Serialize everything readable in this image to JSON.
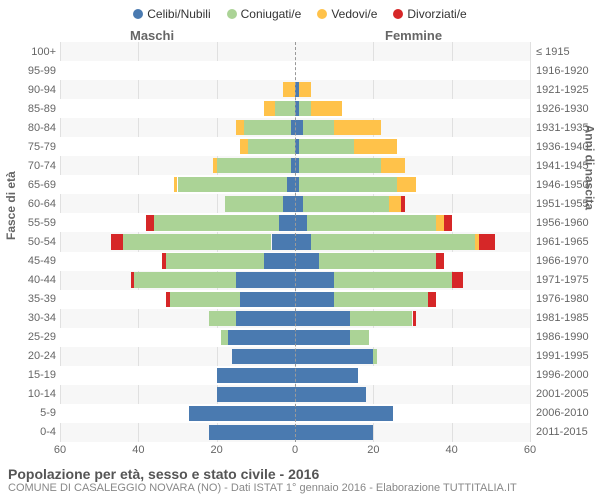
{
  "legend": {
    "items": [
      {
        "label": "Celibi/Nubili",
        "color": "#4a7ab0"
      },
      {
        "label": "Coniugati/e",
        "color": "#abd396"
      },
      {
        "label": "Vedovi/e",
        "color": "#ffc24a"
      },
      {
        "label": "Divorziati/e",
        "color": "#d62728"
      }
    ]
  },
  "gender_labels": {
    "male": "Maschi",
    "female": "Femmine"
  },
  "y_left_title": "Fasce di età",
  "y_right_title": "Anni di nascita",
  "title": "Popolazione per età, sesso e stato civile - 2016",
  "subtitle": "COMUNE DI CASALEGGIO NOVARA (NO) - Dati ISTAT 1° gennaio 2016 - Elaborazione TUTTITALIA.IT",
  "x_axis": {
    "min": -60,
    "max": 60,
    "ticks": [
      -60,
      -40,
      -20,
      0,
      20,
      40,
      60
    ],
    "tick_labels": [
      "60",
      "40",
      "20",
      "0",
      "20",
      "40",
      "60"
    ]
  },
  "plot": {
    "bg": "#f7f7f7",
    "alt_bg": "#ffffff",
    "grid_color": "#e0e0e0",
    "centerline_color": "#999999"
  },
  "rows": [
    {
      "age": "100+",
      "birth": "≤ 1915",
      "m": {
        "single": 0,
        "married": 0,
        "widow": 0,
        "div": 0
      },
      "f": {
        "single": 0,
        "married": 0,
        "widow": 0,
        "div": 0
      }
    },
    {
      "age": "95-99",
      "birth": "1916-1920",
      "m": {
        "single": 0,
        "married": 0,
        "widow": 0,
        "div": 0
      },
      "f": {
        "single": 0,
        "married": 0,
        "widow": 0,
        "div": 0
      }
    },
    {
      "age": "90-94",
      "birth": "1921-1925",
      "m": {
        "single": 0,
        "married": 0,
        "widow": 3,
        "div": 0
      },
      "f": {
        "single": 1,
        "married": 0,
        "widow": 3,
        "div": 0
      }
    },
    {
      "age": "85-89",
      "birth": "1926-1930",
      "m": {
        "single": 0,
        "married": 5,
        "widow": 3,
        "div": 0
      },
      "f": {
        "single": 1,
        "married": 3,
        "widow": 8,
        "div": 0
      }
    },
    {
      "age": "80-84",
      "birth": "1931-1935",
      "m": {
        "single": 1,
        "married": 12,
        "widow": 2,
        "div": 0
      },
      "f": {
        "single": 2,
        "married": 8,
        "widow": 12,
        "div": 0
      }
    },
    {
      "age": "75-79",
      "birth": "1936-1940",
      "m": {
        "single": 0,
        "married": 12,
        "widow": 2,
        "div": 0
      },
      "f": {
        "single": 1,
        "married": 14,
        "widow": 11,
        "div": 0
      }
    },
    {
      "age": "70-74",
      "birth": "1941-1945",
      "m": {
        "single": 1,
        "married": 19,
        "widow": 1,
        "div": 0
      },
      "f": {
        "single": 1,
        "married": 21,
        "widow": 6,
        "div": 0
      }
    },
    {
      "age": "65-69",
      "birth": "1946-1950",
      "m": {
        "single": 2,
        "married": 28,
        "widow": 1,
        "div": 0
      },
      "f": {
        "single": 1,
        "married": 25,
        "widow": 5,
        "div": 0
      }
    },
    {
      "age": "60-64",
      "birth": "1951-1955",
      "m": {
        "single": 3,
        "married": 15,
        "widow": 0,
        "div": 0
      },
      "f": {
        "single": 2,
        "married": 22,
        "widow": 3,
        "div": 1
      }
    },
    {
      "age": "55-59",
      "birth": "1956-1960",
      "m": {
        "single": 4,
        "married": 32,
        "widow": 0,
        "div": 2
      },
      "f": {
        "single": 3,
        "married": 33,
        "widow": 2,
        "div": 2
      }
    },
    {
      "age": "50-54",
      "birth": "1961-1965",
      "m": {
        "single": 6,
        "married": 38,
        "widow": 0,
        "div": 3
      },
      "f": {
        "single": 4,
        "married": 42,
        "widow": 1,
        "div": 4
      }
    },
    {
      "age": "45-49",
      "birth": "1966-1970",
      "m": {
        "single": 8,
        "married": 25,
        "widow": 0,
        "div": 1
      },
      "f": {
        "single": 6,
        "married": 30,
        "widow": 0,
        "div": 2
      }
    },
    {
      "age": "40-44",
      "birth": "1971-1975",
      "m": {
        "single": 15,
        "married": 26,
        "widow": 0,
        "div": 1
      },
      "f": {
        "single": 10,
        "married": 30,
        "widow": 0,
        "div": 3
      }
    },
    {
      "age": "35-39",
      "birth": "1976-1980",
      "m": {
        "single": 14,
        "married": 18,
        "widow": 0,
        "div": 1
      },
      "f": {
        "single": 10,
        "married": 24,
        "widow": 0,
        "div": 2
      }
    },
    {
      "age": "30-34",
      "birth": "1981-1985",
      "m": {
        "single": 15,
        "married": 7,
        "widow": 0,
        "div": 0
      },
      "f": {
        "single": 14,
        "married": 16,
        "widow": 0,
        "div": 1
      }
    },
    {
      "age": "25-29",
      "birth": "1986-1990",
      "m": {
        "single": 17,
        "married": 2,
        "widow": 0,
        "div": 0
      },
      "f": {
        "single": 14,
        "married": 5,
        "widow": 0,
        "div": 0
      }
    },
    {
      "age": "20-24",
      "birth": "1991-1995",
      "m": {
        "single": 16,
        "married": 0,
        "widow": 0,
        "div": 0
      },
      "f": {
        "single": 20,
        "married": 1,
        "widow": 0,
        "div": 0
      }
    },
    {
      "age": "15-19",
      "birth": "1996-2000",
      "m": {
        "single": 20,
        "married": 0,
        "widow": 0,
        "div": 0
      },
      "f": {
        "single": 16,
        "married": 0,
        "widow": 0,
        "div": 0
      }
    },
    {
      "age": "10-14",
      "birth": "2001-2005",
      "m": {
        "single": 20,
        "married": 0,
        "widow": 0,
        "div": 0
      },
      "f": {
        "single": 18,
        "married": 0,
        "widow": 0,
        "div": 0
      }
    },
    {
      "age": "5-9",
      "birth": "2006-2010",
      "m": {
        "single": 27,
        "married": 0,
        "widow": 0,
        "div": 0
      },
      "f": {
        "single": 25,
        "married": 0,
        "widow": 0,
        "div": 0
      }
    },
    {
      "age": "0-4",
      "birth": "2011-2015",
      "m": {
        "single": 22,
        "married": 0,
        "widow": 0,
        "div": 0
      },
      "f": {
        "single": 20,
        "married": 0,
        "widow": 0,
        "div": 0
      }
    }
  ]
}
